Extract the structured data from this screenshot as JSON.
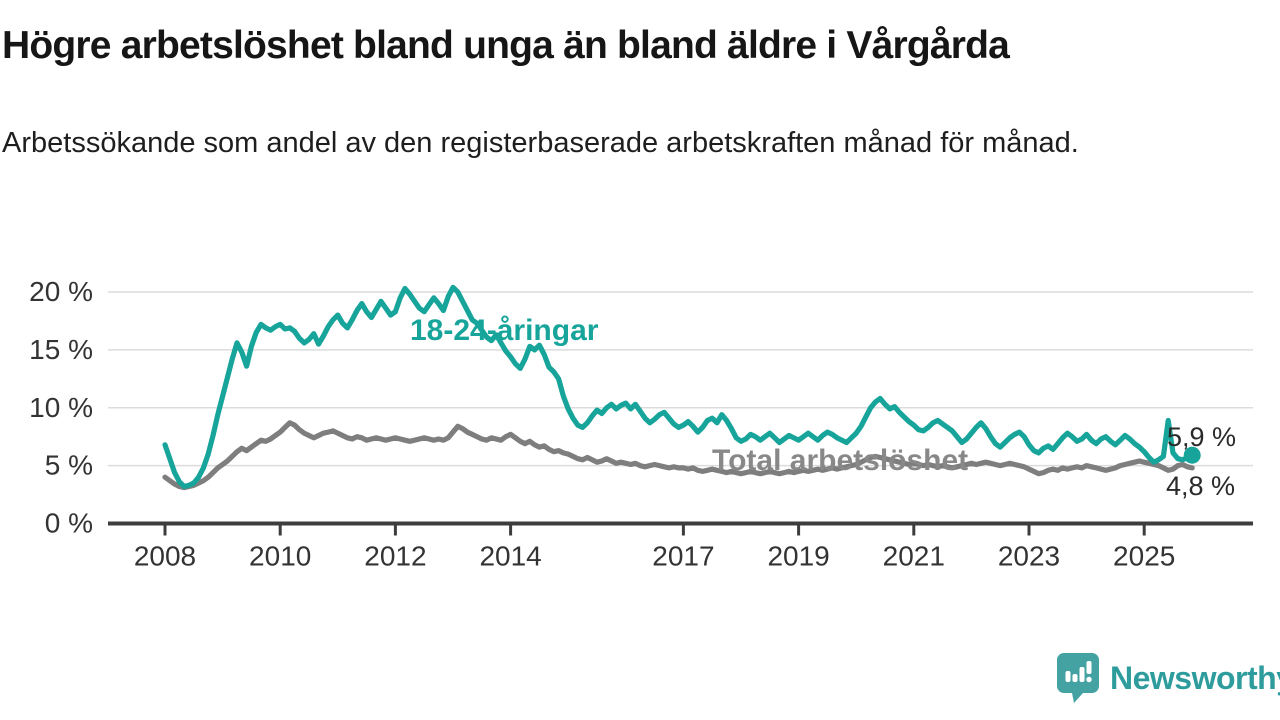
{
  "header": {
    "title": "Högre arbetslöshet bland unga än bland äldre i Vårgårda",
    "subtitle": "Arbetssökande som andel av den registerbaserade arbetskraften månad för månad."
  },
  "colors": {
    "young_line": "#17A49A",
    "total_line": "#7E7E7E",
    "total_label": "#888888",
    "grid": "#DCDCDC",
    "axis": "#3D3D3D",
    "tick_text": "#333333",
    "value_text": "#2A2A2A",
    "logo_teal": "#44A3A2",
    "logo_text_teal": "#2E9C9C"
  },
  "chart_data": {
    "type": "line",
    "title": "",
    "xlabel": "",
    "ylabel": "",
    "x_start": "2008-01",
    "x_end": "2025-11",
    "points_per_year": 12,
    "ylim": [
      0,
      20.8
    ],
    "grid": "horizontal",
    "yticks": [
      [
        0,
        "0 %"
      ],
      [
        5,
        "5 %"
      ],
      [
        10,
        "10 %"
      ],
      [
        15,
        "15 %"
      ],
      [
        20,
        "20 %"
      ]
    ],
    "xtick_years": [
      2008,
      2010,
      2012,
      2014,
      2017,
      2019,
      2021,
      2023,
      2025
    ],
    "xtick_labels": [
      "2008",
      "2010",
      "2012",
      "2014",
      "2017",
      "2019",
      "2021",
      "2023",
      "2025"
    ],
    "series": [
      {
        "name": "total-arbetsloshet",
        "label": "Total arbetslöshet",
        "end_label": "4,8 %",
        "end_value": 4.8,
        "color": "#7E7E7E",
        "values": [
          4.0,
          3.7,
          3.4,
          3.2,
          3.1,
          3.2,
          3.3,
          3.5,
          3.7,
          4.0,
          4.4,
          4.8,
          5.1,
          5.4,
          5.8,
          6.2,
          6.5,
          6.3,
          6.6,
          6.9,
          7.2,
          7.1,
          7.3,
          7.6,
          7.9,
          8.3,
          8.7,
          8.5,
          8.1,
          7.8,
          7.6,
          7.4,
          7.6,
          7.8,
          7.9,
          8.0,
          7.8,
          7.6,
          7.4,
          7.3,
          7.5,
          7.4,
          7.2,
          7.3,
          7.4,
          7.3,
          7.2,
          7.3,
          7.4,
          7.3,
          7.2,
          7.1,
          7.2,
          7.3,
          7.4,
          7.3,
          7.2,
          7.3,
          7.2,
          7.4,
          7.9,
          8.4,
          8.2,
          7.9,
          7.7,
          7.5,
          7.3,
          7.2,
          7.4,
          7.3,
          7.2,
          7.5,
          7.7,
          7.4,
          7.1,
          6.9,
          7.1,
          6.8,
          6.6,
          6.7,
          6.4,
          6.2,
          6.3,
          6.1,
          6.0,
          5.8,
          5.6,
          5.5,
          5.7,
          5.5,
          5.3,
          5.4,
          5.6,
          5.4,
          5.2,
          5.3,
          5.2,
          5.1,
          5.2,
          5.0,
          4.9,
          5.0,
          5.1,
          5.0,
          4.9,
          4.8,
          4.9,
          4.8,
          4.8,
          4.7,
          4.8,
          4.6,
          4.5,
          4.6,
          4.7,
          4.6,
          4.5,
          4.4,
          4.5,
          4.4,
          4.3,
          4.4,
          4.5,
          4.4,
          4.3,
          4.4,
          4.5,
          4.4,
          4.3,
          4.4,
          4.5,
          4.4,
          4.5,
          4.6,
          4.5,
          4.6,
          4.7,
          4.6,
          4.7,
          4.8,
          4.7,
          4.8,
          4.9,
          5.0,
          5.1,
          5.3,
          5.5,
          5.7,
          5.8,
          5.7,
          5.6,
          5.5,
          5.4,
          5.3,
          5.2,
          5.1,
          5.2,
          5.1,
          5.0,
          5.1,
          5.0,
          4.9,
          5.0,
          4.9,
          4.8,
          4.9,
          5.0,
          5.1,
          5.2,
          5.1,
          5.2,
          5.3,
          5.2,
          5.1,
          5.0,
          5.1,
          5.2,
          5.1,
          5.0,
          4.9,
          4.7,
          4.5,
          4.3,
          4.4,
          4.6,
          4.7,
          4.6,
          4.8,
          4.7,
          4.8,
          4.9,
          4.8,
          5.0,
          4.9,
          4.8,
          4.7,
          4.6,
          4.7,
          4.8,
          5.0,
          5.1,
          5.2,
          5.3,
          5.4,
          5.3,
          5.2,
          5.1,
          5.0,
          4.8,
          4.6,
          4.7,
          5.0,
          5.1,
          4.9,
          4.8
        ]
      },
      {
        "name": "18-24-aringar",
        "label": "18-24-åringar",
        "end_label": "5,9 %",
        "end_value": 5.9,
        "color": "#17A49A",
        "end_dot": true,
        "values": [
          6.8,
          5.6,
          4.4,
          3.6,
          3.2,
          3.3,
          3.5,
          4.0,
          4.8,
          6.0,
          7.6,
          9.4,
          11.0,
          12.6,
          14.2,
          15.6,
          14.8,
          13.6,
          15.3,
          16.5,
          17.2,
          16.9,
          16.7,
          17.0,
          17.2,
          16.8,
          16.9,
          16.6,
          16.0,
          15.6,
          15.9,
          16.4,
          15.5,
          16.2,
          17.0,
          17.6,
          18.0,
          17.3,
          16.9,
          17.6,
          18.4,
          19.0,
          18.3,
          17.8,
          18.5,
          19.2,
          18.6,
          18.0,
          18.3,
          19.5,
          20.3,
          19.8,
          19.2,
          18.6,
          18.3,
          18.9,
          19.5,
          19.0,
          18.4,
          19.6,
          20.4,
          20.0,
          19.2,
          18.4,
          17.6,
          17.3,
          16.7,
          16.1,
          15.8,
          16.3,
          15.6,
          14.9,
          14.4,
          13.8,
          13.4,
          14.2,
          15.3,
          15.0,
          15.4,
          14.6,
          13.5,
          13.1,
          12.5,
          11.0,
          9.9,
          9.1,
          8.5,
          8.3,
          8.7,
          9.3,
          9.8,
          9.5,
          10.0,
          10.3,
          9.9,
          10.2,
          10.4,
          9.9,
          10.3,
          9.7,
          9.1,
          8.7,
          9.0,
          9.4,
          9.6,
          9.1,
          8.6,
          8.3,
          8.5,
          8.8,
          8.4,
          7.9,
          8.3,
          8.9,
          9.1,
          8.7,
          9.4,
          8.9,
          8.2,
          7.4,
          7.1,
          7.3,
          7.7,
          7.5,
          7.2,
          7.5,
          7.8,
          7.4,
          7.0,
          7.3,
          7.6,
          7.4,
          7.2,
          7.5,
          7.8,
          7.5,
          7.2,
          7.6,
          7.9,
          7.7,
          7.4,
          7.2,
          7.0,
          7.4,
          7.8,
          8.4,
          9.2,
          10.0,
          10.5,
          10.8,
          10.3,
          9.9,
          10.1,
          9.6,
          9.2,
          8.8,
          8.5,
          8.1,
          8.0,
          8.3,
          8.7,
          8.9,
          8.6,
          8.3,
          8.0,
          7.5,
          7.0,
          7.3,
          7.8,
          8.3,
          8.7,
          8.2,
          7.5,
          6.9,
          6.6,
          7.0,
          7.4,
          7.7,
          7.9,
          7.5,
          6.8,
          6.3,
          6.1,
          6.5,
          6.7,
          6.4,
          6.9,
          7.4,
          7.8,
          7.5,
          7.1,
          7.3,
          7.7,
          7.2,
          6.9,
          7.3,
          7.5,
          7.1,
          6.8,
          7.2,
          7.6,
          7.3,
          6.9,
          6.6,
          6.2,
          5.7,
          5.3,
          5.5,
          5.8,
          8.9,
          6.1,
          5.6,
          5.5,
          5.7,
          5.9
        ]
      }
    ]
  },
  "annotations": {
    "young_label": "18-24-åringar",
    "total_label": "Total arbetslöshet",
    "young_end": "5,9 %",
    "total_end": "4,8 %"
  },
  "footer": {
    "brand": "Newsworthy"
  }
}
